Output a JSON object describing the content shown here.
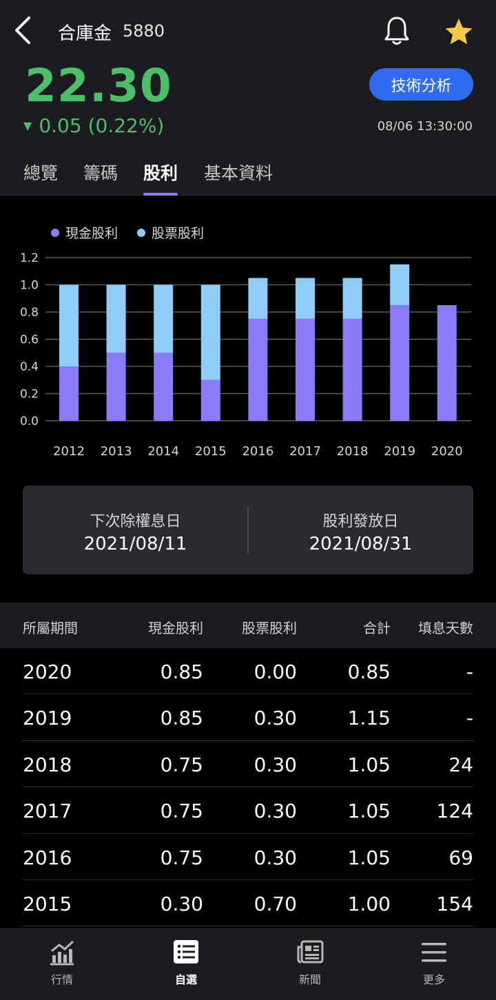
{
  "header": {
    "stock_name": "合庫金",
    "stock_code": "5880",
    "price": "22.30",
    "change": "0.05 (0.22%)",
    "tech_button_label": "技術分析",
    "timestamp": "08/06 13:30:00",
    "price_color": "#4cbf6a"
  },
  "tabs": [
    {
      "label": "總覽",
      "active": false
    },
    {
      "label": "籌碼",
      "active": false
    },
    {
      "label": "股利",
      "active": true
    },
    {
      "label": "基本資料",
      "active": false
    }
  ],
  "chart_data": {
    "type": "bar",
    "stacked": true,
    "categories": [
      "2012",
      "2013",
      "2014",
      "2015",
      "2016",
      "2017",
      "2018",
      "2019",
      "2020"
    ],
    "series": [
      {
        "name": "現金股利",
        "color": "#8b7cf6",
        "values": [
          0.4,
          0.5,
          0.5,
          0.3,
          0.75,
          0.75,
          0.75,
          0.85,
          0.85
        ]
      },
      {
        "name": "股票股利",
        "color": "#8fcdf6",
        "values": [
          0.6,
          0.5,
          0.5,
          0.7,
          0.3,
          0.3,
          0.3,
          0.3,
          0.0
        ]
      }
    ],
    "yticks": [
      "0.0",
      "0.2",
      "0.4",
      "0.6",
      "0.8",
      "1.0",
      "1.2"
    ],
    "ylim": [
      0,
      1.2
    ],
    "grid": true,
    "legend_position": "top-left"
  },
  "dates": {
    "ex_dividend_label": "下次除權息日",
    "ex_dividend_value": "2021/08/11",
    "payment_label": "股利發放日",
    "payment_value": "2021/08/31"
  },
  "table": {
    "headers": {
      "period": "所屬期間",
      "cash": "現金股利",
      "stock": "股票股利",
      "total": "合計",
      "days": "填息天數"
    },
    "rows": [
      {
        "period": "2020",
        "cash": "0.85",
        "stock": "0.00",
        "total": "0.85",
        "days": "-"
      },
      {
        "period": "2019",
        "cash": "0.85",
        "stock": "0.30",
        "total": "1.15",
        "days": "-"
      },
      {
        "period": "2018",
        "cash": "0.75",
        "stock": "0.30",
        "total": "1.05",
        "days": "24"
      },
      {
        "period": "2017",
        "cash": "0.75",
        "stock": "0.30",
        "total": "1.05",
        "days": "124"
      },
      {
        "period": "2016",
        "cash": "0.75",
        "stock": "0.30",
        "total": "1.05",
        "days": "69"
      },
      {
        "period": "2015",
        "cash": "0.30",
        "stock": "0.70",
        "total": "1.00",
        "days": "154"
      }
    ]
  },
  "bottom_nav": [
    {
      "label": "行情",
      "icon": "chart-icon",
      "active": false
    },
    {
      "label": "自選",
      "icon": "watchlist-icon",
      "active": true
    },
    {
      "label": "新聞",
      "icon": "news-icon",
      "active": false
    },
    {
      "label": "更多",
      "icon": "menu-icon",
      "active": false
    }
  ]
}
